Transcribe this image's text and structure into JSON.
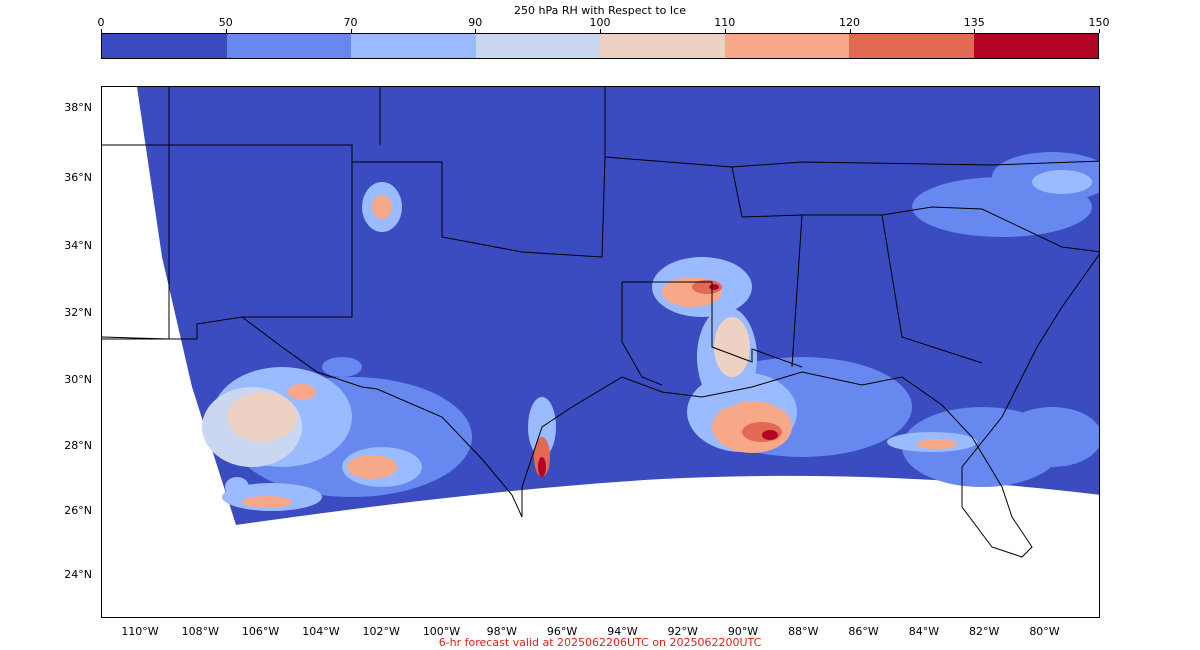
{
  "colorbar": {
    "title": "250 hPa RH with Respect to Ice",
    "ticks": [
      "0",
      "50",
      "70",
      "90",
      "100",
      "110",
      "120",
      "135",
      "150"
    ],
    "colors": [
      "#3b4cc0",
      "#6788ee",
      "#9abbff",
      "#c9d7f0",
      "#edd1c2",
      "#f7a889",
      "#e26952",
      "#b40426"
    ]
  },
  "map": {
    "lat_labels": [
      "38°N",
      "36°N",
      "34°N",
      "32°N",
      "30°N",
      "28°N",
      "26°N",
      "24°N"
    ],
    "lon_labels": [
      "110°W",
      "108°W",
      "106°W",
      "104°W",
      "102°W",
      "100°W",
      "98°W",
      "96°W",
      "94°W",
      "92°W",
      "90°W",
      "88°W",
      "86°W",
      "84°W",
      "82°W",
      "80°W"
    ],
    "background_color": "#3b4cc0",
    "border_color": "#000000"
  },
  "caption": {
    "text": "6-hr forecast valid at 2025062206UTC on 2025062200UTC",
    "color": "#e0201b"
  }
}
